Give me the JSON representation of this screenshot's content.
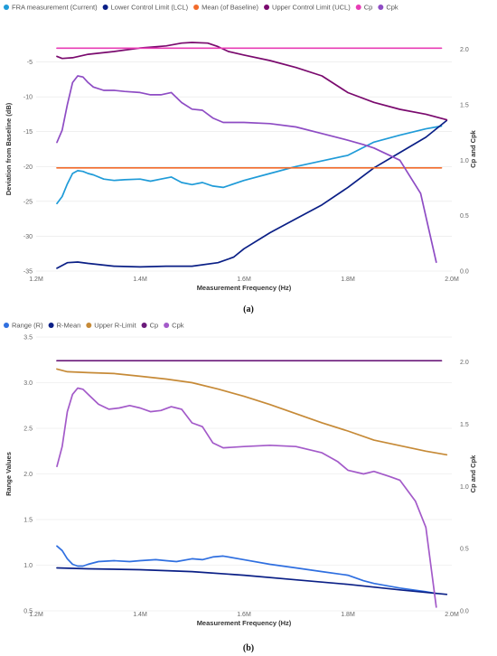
{
  "chart_data": [
    {
      "type": "line",
      "panel_label": "(a)",
      "xlabel": "Measurement Frequency (Hz)",
      "ylabel": "Deviation from Baseline (dB)",
      "y2label": "Cp and Cpk",
      "x_ticks": [
        "1.2M",
        "1.4M",
        "1.6M",
        "1.8M",
        "2.0M"
      ],
      "x_tick_values": [
        1.2,
        1.4,
        1.6,
        1.8,
        2.0
      ],
      "xlim": [
        1.2,
        2.0
      ],
      "ylim": [
        -35,
        0
      ],
      "y_ticks": [
        -5,
        -10,
        -15,
        -20,
        -25,
        -30,
        -35
      ],
      "y2lim": [
        0,
        2.2
      ],
      "y2_ticks": [
        0.0,
        0.5,
        1.0,
        1.5,
        2.0
      ],
      "y2_tick_labels": [
        "0.0",
        "0.5",
        "1.0",
        "1.5",
        "2.0"
      ],
      "legend": [
        "FRA measurement (Current)",
        "Lower Control Limit (LCL)",
        "Mean (of Baseline)",
        "Upper Control Limit (UCL)",
        "Cp",
        "Cpk"
      ],
      "series": [
        {
          "name": "FRA measurement (Current)",
          "color": "#1f9bd8",
          "axis": "left",
          "x": [
            1.24,
            1.25,
            1.26,
            1.27,
            1.28,
            1.29,
            1.3,
            1.31,
            1.33,
            1.35,
            1.37,
            1.4,
            1.42,
            1.44,
            1.46,
            1.48,
            1.5,
            1.52,
            1.54,
            1.56,
            1.6,
            1.65,
            1.7,
            1.75,
            1.8,
            1.85,
            1.9,
            1.95,
            1.98
          ],
          "y": [
            -25.3,
            -24.3,
            -22.5,
            -21.0,
            -20.6,
            -20.7,
            -21.0,
            -21.2,
            -21.8,
            -22.0,
            -21.9,
            -21.8,
            -22.1,
            -21.8,
            -21.5,
            -22.3,
            -22.6,
            -22.3,
            -22.8,
            -23.0,
            -22.0,
            -21.0,
            -20.0,
            -19.2,
            -18.4,
            -16.5,
            -15.5,
            -14.6,
            -14.2
          ]
        },
        {
          "name": "Lower Control Limit (LCL)",
          "color": "#0a1f86",
          "axis": "left",
          "x": [
            1.24,
            1.26,
            1.28,
            1.3,
            1.35,
            1.4,
            1.45,
            1.5,
            1.55,
            1.58,
            1.6,
            1.65,
            1.7,
            1.75,
            1.8,
            1.85,
            1.9,
            1.95,
            1.99
          ],
          "y": [
            -34.6,
            -33.8,
            -33.7,
            -33.9,
            -34.3,
            -34.4,
            -34.3,
            -34.3,
            -33.8,
            -33.0,
            -31.8,
            -29.5,
            -27.5,
            -25.5,
            -23.0,
            -20.2,
            -18.0,
            -15.8,
            -13.4
          ]
        },
        {
          "name": "Mean (of Baseline)",
          "color": "#f26b2b",
          "axis": "left",
          "x": [
            1.24,
            1.98
          ],
          "y": [
            -20.2,
            -20.2
          ]
        },
        {
          "name": "Upper Control Limit (UCL)",
          "color": "#7a0a6e",
          "axis": "left",
          "x": [
            1.24,
            1.25,
            1.27,
            1.3,
            1.35,
            1.4,
            1.45,
            1.48,
            1.5,
            1.53,
            1.55,
            1.57,
            1.6,
            1.65,
            1.7,
            1.75,
            1.8,
            1.85,
            1.9,
            1.95,
            1.99
          ],
          "y": [
            -4.2,
            -4.5,
            -4.4,
            -3.9,
            -3.5,
            -3.0,
            -2.7,
            -2.3,
            -2.2,
            -2.3,
            -2.8,
            -3.5,
            -4.0,
            -4.8,
            -5.8,
            -7.0,
            -9.4,
            -10.8,
            -11.8,
            -12.5,
            -13.3
          ]
        },
        {
          "name": "Cp",
          "color": "#e83cb5",
          "axis": "right",
          "x": [
            1.24,
            1.98
          ],
          "y": [
            2.01,
            2.01
          ]
        },
        {
          "name": "Cpk",
          "color": "#8e4cc4",
          "axis": "right",
          "x": [
            1.24,
            1.25,
            1.26,
            1.27,
            1.28,
            1.29,
            1.3,
            1.31,
            1.33,
            1.35,
            1.37,
            1.4,
            1.42,
            1.44,
            1.46,
            1.48,
            1.5,
            1.52,
            1.54,
            1.56,
            1.6,
            1.65,
            1.7,
            1.75,
            1.8,
            1.83,
            1.85,
            1.9,
            1.94,
            1.97
          ],
          "y": [
            1.16,
            1.27,
            1.5,
            1.7,
            1.76,
            1.75,
            1.7,
            1.66,
            1.63,
            1.63,
            1.62,
            1.61,
            1.59,
            1.59,
            1.61,
            1.52,
            1.46,
            1.45,
            1.38,
            1.34,
            1.34,
            1.33,
            1.3,
            1.24,
            1.18,
            1.14,
            1.11,
            1.0,
            0.7,
            0.08
          ]
        }
      ]
    },
    {
      "type": "line",
      "panel_label": "(b)",
      "xlabel": "Measurement Frequency (Hz)",
      "ylabel": "Range Values",
      "y2label": "Cp and Cpk",
      "x_ticks": [
        "1.2M",
        "1.4M",
        "1.6M",
        "1.8M",
        "2.0M"
      ],
      "x_tick_values": [
        1.2,
        1.4,
        1.6,
        1.8,
        2.0
      ],
      "xlim": [
        1.2,
        2.0
      ],
      "ylim": [
        0.5,
        3.5
      ],
      "y_ticks": [
        0.5,
        1.0,
        1.5,
        2.0,
        2.5,
        3.0,
        3.5
      ],
      "y_tick_labels": [
        "0.5",
        "1.0",
        "1.5",
        "2.0",
        "2.5",
        "3.0",
        "3.5"
      ],
      "y2lim": [
        0,
        2.2
      ],
      "y2_ticks": [
        0.0,
        0.5,
        1.0,
        1.5,
        2.0
      ],
      "y2_tick_labels": [
        "0.0",
        "0.5",
        "1.0",
        "1.5",
        "2.0"
      ],
      "legend": [
        "Range (R)",
        "R-Mean",
        "Upper R-Limit",
        "Cp",
        "Cpk"
      ],
      "series": [
        {
          "name": "Range (R)",
          "color": "#2f6fe0",
          "axis": "left",
          "x": [
            1.24,
            1.25,
            1.26,
            1.27,
            1.28,
            1.29,
            1.3,
            1.32,
            1.35,
            1.38,
            1.4,
            1.43,
            1.45,
            1.47,
            1.5,
            1.52,
            1.54,
            1.56,
            1.6,
            1.65,
            1.7,
            1.75,
            1.8,
            1.83,
            1.85,
            1.9,
            1.95,
            1.97
          ],
          "y": [
            1.21,
            1.16,
            1.07,
            1.01,
            0.99,
            0.99,
            1.01,
            1.04,
            1.05,
            1.04,
            1.05,
            1.06,
            1.05,
            1.04,
            1.07,
            1.06,
            1.09,
            1.1,
            1.06,
            1.01,
            0.97,
            0.93,
            0.89,
            0.83,
            0.8,
            0.75,
            0.71,
            0.69
          ]
        },
        {
          "name": "R-Mean",
          "color": "#0a1f86",
          "axis": "left",
          "x": [
            1.24,
            1.3,
            1.4,
            1.5,
            1.6,
            1.7,
            1.8,
            1.9,
            1.99
          ],
          "y": [
            0.97,
            0.96,
            0.95,
            0.93,
            0.89,
            0.84,
            0.79,
            0.73,
            0.68
          ]
        },
        {
          "name": "Upper R-Limit",
          "color": "#c68a37",
          "axis": "left",
          "x": [
            1.24,
            1.26,
            1.3,
            1.35,
            1.4,
            1.45,
            1.5,
            1.55,
            1.6,
            1.65,
            1.7,
            1.75,
            1.8,
            1.85,
            1.9,
            1.95,
            1.99
          ],
          "y": [
            3.15,
            3.12,
            3.11,
            3.1,
            3.07,
            3.04,
            3.0,
            2.93,
            2.85,
            2.76,
            2.66,
            2.56,
            2.47,
            2.37,
            2.31,
            2.25,
            2.21
          ]
        },
        {
          "name": "Cp",
          "color": "#6b1a7a",
          "axis": "right",
          "x": [
            1.24,
            1.98
          ],
          "y": [
            2.01,
            2.01
          ]
        },
        {
          "name": "Cpk",
          "color": "#a35ac9",
          "axis": "right",
          "x": [
            1.24,
            1.25,
            1.26,
            1.27,
            1.28,
            1.29,
            1.3,
            1.32,
            1.34,
            1.36,
            1.38,
            1.4,
            1.42,
            1.44,
            1.46,
            1.47,
            1.48,
            1.5,
            1.52,
            1.54,
            1.56,
            1.6,
            1.65,
            1.7,
            1.75,
            1.78,
            1.8,
            1.83,
            1.85,
            1.88,
            1.9,
            1.93,
            1.95,
            1.97
          ],
          "y": [
            1.16,
            1.32,
            1.6,
            1.74,
            1.79,
            1.78,
            1.74,
            1.66,
            1.62,
            1.63,
            1.65,
            1.63,
            1.6,
            1.61,
            1.64,
            1.63,
            1.62,
            1.51,
            1.48,
            1.35,
            1.31,
            1.32,
            1.33,
            1.32,
            1.27,
            1.2,
            1.13,
            1.1,
            1.12,
            1.08,
            1.05,
            0.88,
            0.67,
            0.03
          ]
        }
      ]
    }
  ]
}
